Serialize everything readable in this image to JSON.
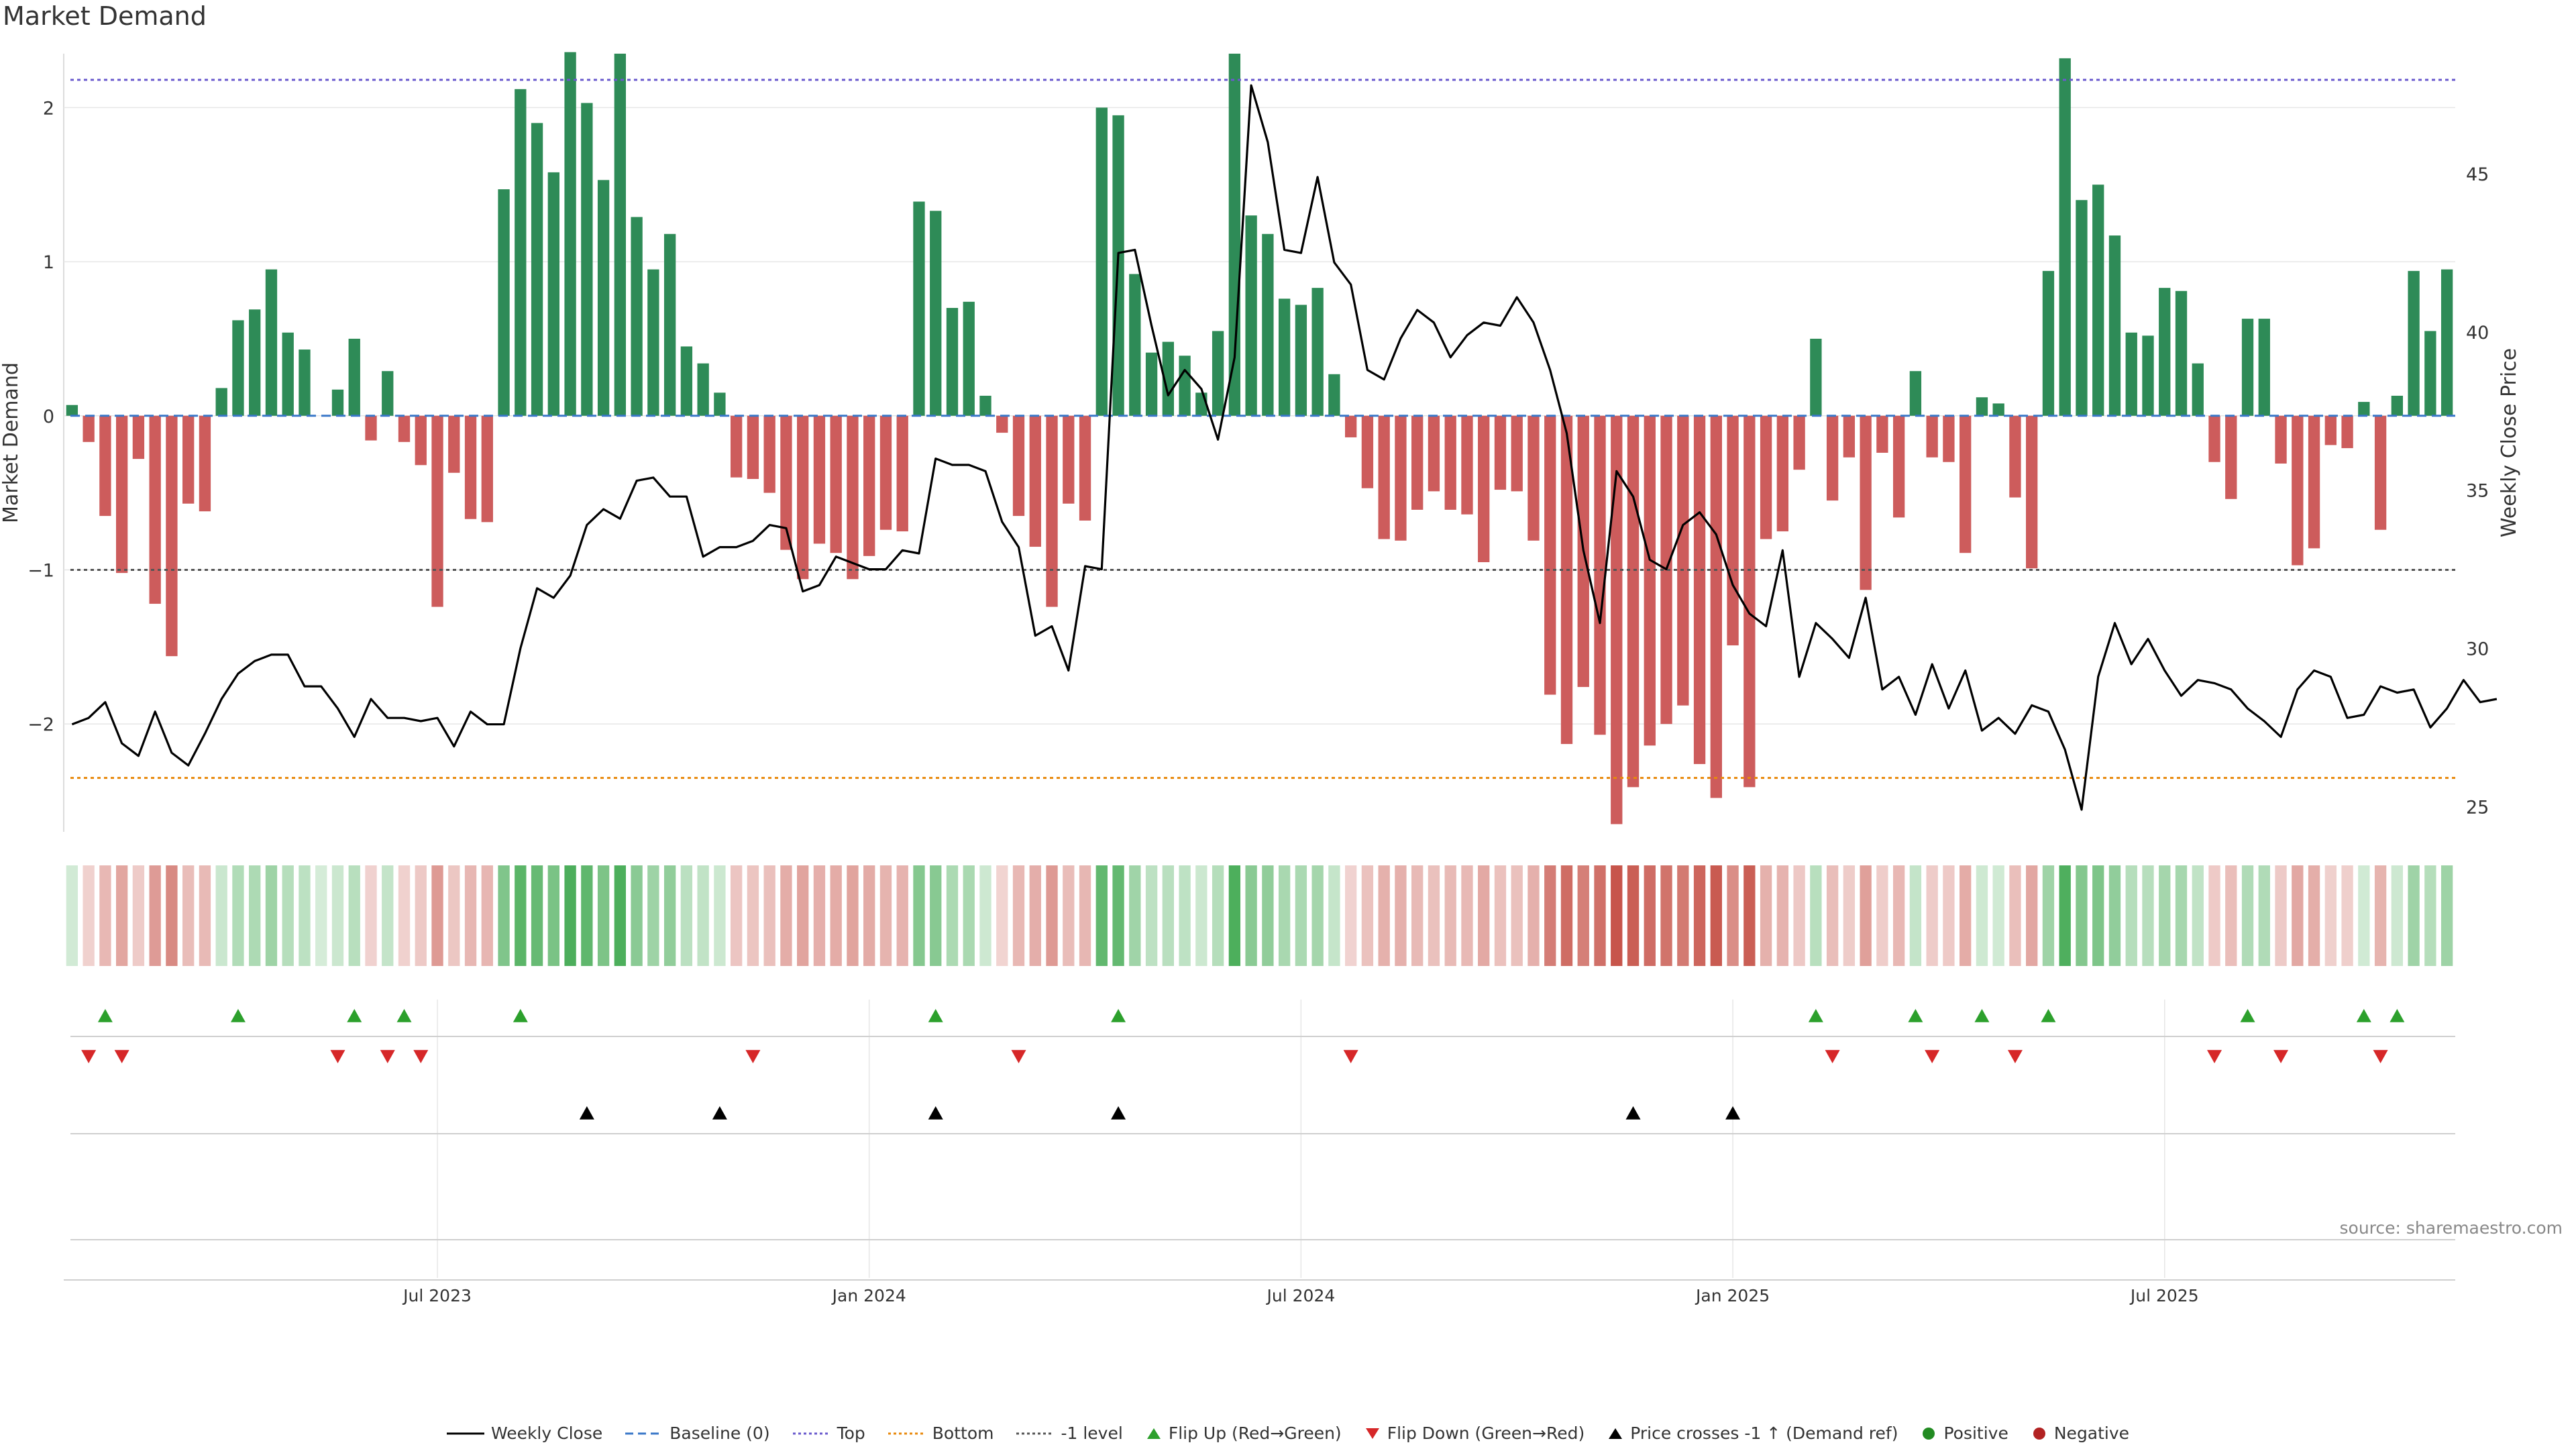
{
  "chart_data": {
    "type": "bar",
    "title": "Market Demand",
    "ylabel": "Market Demand",
    "y2label": "Weekly Close Price",
    "ylim": [
      -2.7,
      2.35
    ],
    "y2lim": [
      24.2,
      48.8
    ],
    "yticks": [
      -2,
      -1,
      0,
      1,
      2
    ],
    "y2ticks": [
      25,
      30,
      35,
      40,
      45
    ],
    "reference_lines": {
      "top": 2.18,
      "bottom": -2.35,
      "minus_one": -1,
      "baseline": 0
    },
    "x_tick_labels": [
      {
        "index": 22,
        "label": "Jul 2023"
      },
      {
        "index": 48,
        "label": "Jan 2024"
      },
      {
        "index": 74,
        "label": "Jul 2024"
      },
      {
        "index": 100,
        "label": "Jan 2025"
      },
      {
        "index": 126,
        "label": "Jul 2025"
      }
    ],
    "demand": [
      0.07,
      -0.17,
      -0.65,
      -1.02,
      -0.28,
      -1.22,
      -1.56,
      -0.57,
      -0.62,
      0.18,
      0.62,
      0.69,
      0.95,
      0.54,
      0.43,
      0.0,
      0.17,
      0.5,
      -0.16,
      0.29,
      -0.17,
      -0.32,
      -1.24,
      -0.37,
      -0.67,
      -0.69,
      1.47,
      2.12,
      1.9,
      1.58,
      2.36,
      2.03,
      1.53,
      2.35,
      1.29,
      0.95,
      1.18,
      0.45,
      0.34,
      0.15,
      -0.4,
      -0.41,
      -0.5,
      -0.87,
      -1.06,
      -0.83,
      -0.89,
      -1.06,
      -0.91,
      -0.74,
      -0.75,
      1.39,
      1.33,
      0.7,
      0.74,
      0.13,
      -0.11,
      -0.65,
      -0.85,
      -1.24,
      -0.57,
      -0.68,
      2.0,
      1.95,
      0.92,
      0.41,
      0.48,
      0.39,
      0.15,
      0.55,
      2.35,
      1.3,
      1.18,
      0.76,
      0.72,
      0.83,
      0.27,
      -0.14,
      -0.47,
      -0.8,
      -0.81,
      -0.61,
      -0.49,
      -0.61,
      -0.64,
      -0.95,
      -0.48,
      -0.49,
      -0.81,
      -1.81,
      -2.13,
      -1.76,
      -2.07,
      -2.65,
      -2.41,
      -2.14,
      -2.0,
      -1.88,
      -2.26,
      -2.48,
      -1.49,
      -2.41,
      -0.8,
      -0.75,
      -0.35,
      0.5,
      -0.55,
      -0.27,
      -1.13,
      -0.24,
      -0.66,
      0.29,
      -0.27,
      -0.3,
      -0.89,
      0.12,
      0.08,
      -0.53,
      -0.99,
      0.94,
      2.32,
      1.4,
      1.5,
      1.17,
      0.54,
      0.52,
      0.83,
      0.81,
      0.34,
      -0.3,
      -0.54,
      0.63,
      0.63,
      -0.31,
      -0.97,
      -0.86,
      -0.19,
      -0.21,
      0.09,
      -0.74,
      0.13,
      0.94,
      0.55,
      0.95
    ],
    "weekly_close": [
      27.6,
      27.8,
      28.3,
      27.0,
      26.6,
      28.0,
      26.7,
      26.3,
      27.3,
      28.4,
      29.2,
      29.6,
      29.8,
      29.8,
      28.8,
      28.8,
      28.1,
      27.2,
      28.4,
      27.8,
      27.8,
      27.7,
      27.8,
      26.9,
      28.0,
      27.6,
      27.6,
      30.0,
      31.9,
      31.6,
      32.3,
      33.9,
      34.4,
      34.1,
      35.3,
      35.4,
      34.8,
      34.8,
      32.9,
      33.2,
      33.2,
      33.4,
      33.9,
      33.8,
      31.8,
      32.0,
      32.9,
      32.7,
      32.5,
      32.5,
      33.1,
      33.0,
      36.0,
      35.8,
      35.8,
      35.6,
      34.0,
      33.2,
      30.4,
      30.7,
      29.3,
      32.6,
      32.5,
      42.5,
      42.6,
      40.2,
      38.0,
      38.8,
      38.2,
      36.6,
      39.2,
      47.8,
      46.0,
      42.6,
      42.5,
      44.9,
      42.2,
      41.5,
      38.8,
      38.5,
      39.8,
      40.7,
      40.3,
      39.2,
      39.9,
      40.3,
      40.2,
      41.1,
      40.3,
      38.8,
      36.8,
      33.1,
      30.8,
      35.6,
      34.8,
      32.8,
      32.5,
      33.9,
      34.3,
      33.6,
      32.0,
      31.1,
      30.7,
      33.1,
      29.1,
      30.8,
      30.3,
      29.7,
      31.6,
      28.7,
      29.1,
      27.9,
      29.5,
      28.1,
      29.3,
      27.4,
      27.8,
      27.3,
      28.2,
      28.0,
      26.8,
      24.9,
      29.1,
      30.8,
      29.5,
      30.3,
      29.3,
      28.5,
      29.0,
      28.9,
      28.7,
      28.1,
      27.7,
      27.2,
      28.7,
      29.3,
      29.1,
      27.8,
      27.9,
      28.8,
      28.6,
      28.7,
      27.5,
      28.1,
      29.0,
      28.3,
      28.4
    ],
    "flip_up": [
      2,
      10,
      17,
      20,
      27,
      52,
      63,
      105,
      111,
      115,
      119,
      131,
      138,
      140
    ],
    "flip_down": [
      1,
      3,
      16,
      19,
      21,
      41,
      57,
      77,
      106,
      112,
      117,
      129,
      133,
      139
    ],
    "price_crosses_up": [
      31,
      39,
      52,
      63,
      94,
      100
    ],
    "series": [
      {
        "name": "Weekly Close",
        "kind": "line"
      },
      {
        "name": "Baseline (0)",
        "kind": "dashed line"
      },
      {
        "name": "Top",
        "kind": "dotted line"
      },
      {
        "name": "Bottom",
        "kind": "dotted line"
      },
      {
        "name": "-1 level",
        "kind": "dotted line"
      },
      {
        "name": "Flip Up (Red→Green)",
        "kind": "marker"
      },
      {
        "name": "Flip Down (Green→Red)",
        "kind": "marker"
      },
      {
        "name": "Price crosses -1 ↑ (Demand ref)",
        "kind": "marker"
      },
      {
        "name": "Positive",
        "kind": "marker"
      },
      {
        "name": "Negative",
        "kind": "marker"
      }
    ],
    "legend_position": "bottom-center",
    "source": "source: sharemaestro.com"
  },
  "colors": {
    "positive_bar": "#2e8b57",
    "negative_bar": "#cd5c5c",
    "price_line": "#000000",
    "top_line": "#6a5acd",
    "bottom_line": "#e8890c",
    "minus_one_line": "#555555",
    "baseline": "#3a78c9",
    "flip_up": "#2ca02c",
    "flip_down": "#d62728",
    "cross_marker": "#000000",
    "positive_dot": "#228b22",
    "negative_dot": "#b22222",
    "grid": "#e6e6e6"
  }
}
